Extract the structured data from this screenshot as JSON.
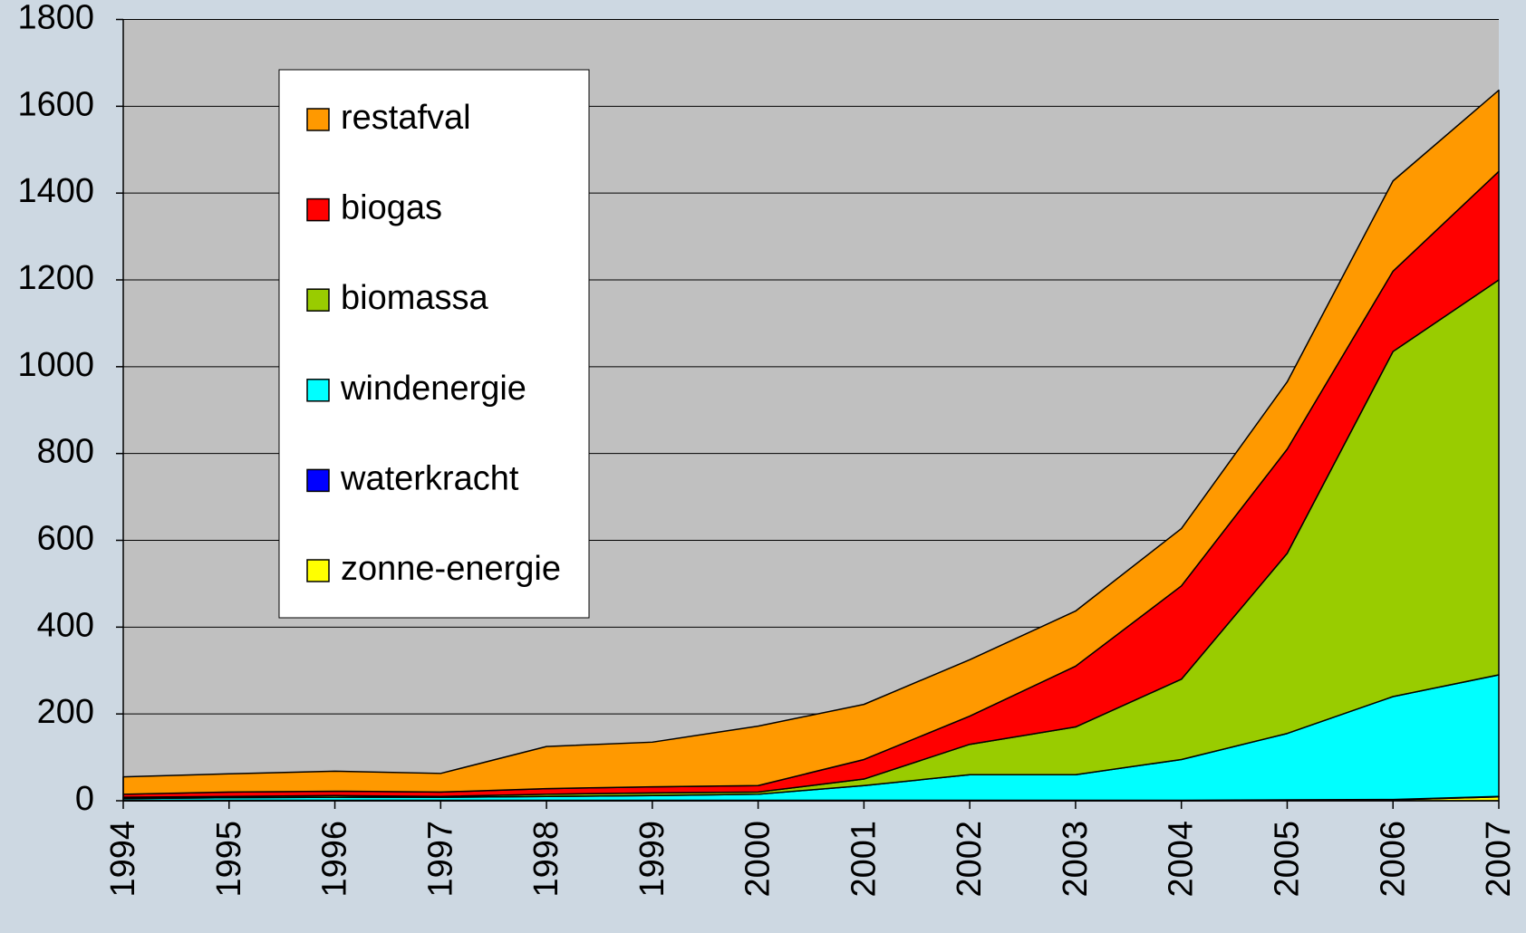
{
  "chart_data": {
    "type": "stacked_area",
    "categories": [
      "1994",
      "1995",
      "1996",
      "1997",
      "1998",
      "1999",
      "2000",
      "2001",
      "2002",
      "2003",
      "2004",
      "2005",
      "2006",
      "2007"
    ],
    "series": [
      {
        "name": "zonne-energie",
        "color": "#ffff00",
        "values": [
          0,
          0,
          0,
          0,
          0,
          0,
          0,
          0,
          0,
          0,
          0,
          1,
          2,
          9
        ]
      },
      {
        "name": "waterkracht",
        "color": "#0000ff",
        "values": [
          1,
          1,
          1,
          1,
          1,
          1,
          1,
          1,
          1,
          1,
          1,
          1,
          1,
          1
        ]
      },
      {
        "name": "windenergie",
        "color": "#00ffff",
        "values": [
          4,
          6,
          7,
          7,
          9,
          11,
          14,
          34,
          59,
          59,
          94,
          153,
          237,
          280
        ]
      },
      {
        "name": "biomassa",
        "color": "#99cc00",
        "values": [
          3,
          3,
          4,
          2,
          5,
          6,
          5,
          15,
          70,
          110,
          185,
          415,
          795,
          910
        ]
      },
      {
        "name": "biogas",
        "color": "#ff0000",
        "values": [
          7,
          10,
          10,
          10,
          13,
          14,
          15,
          45,
          65,
          140,
          215,
          240,
          185,
          250
        ]
      },
      {
        "name": "restafval",
        "color": "#ff9900",
        "values": [
          40,
          42,
          46,
          43,
          97,
          103,
          137,
          127,
          130,
          127,
          132,
          155,
          208,
          187
        ]
      }
    ],
    "ylim": [
      0,
      1800
    ],
    "yticks": [
      0,
      200,
      400,
      600,
      800,
      1000,
      1200,
      1400,
      1600,
      1800
    ],
    "grid": true,
    "legend": "upper left"
  }
}
